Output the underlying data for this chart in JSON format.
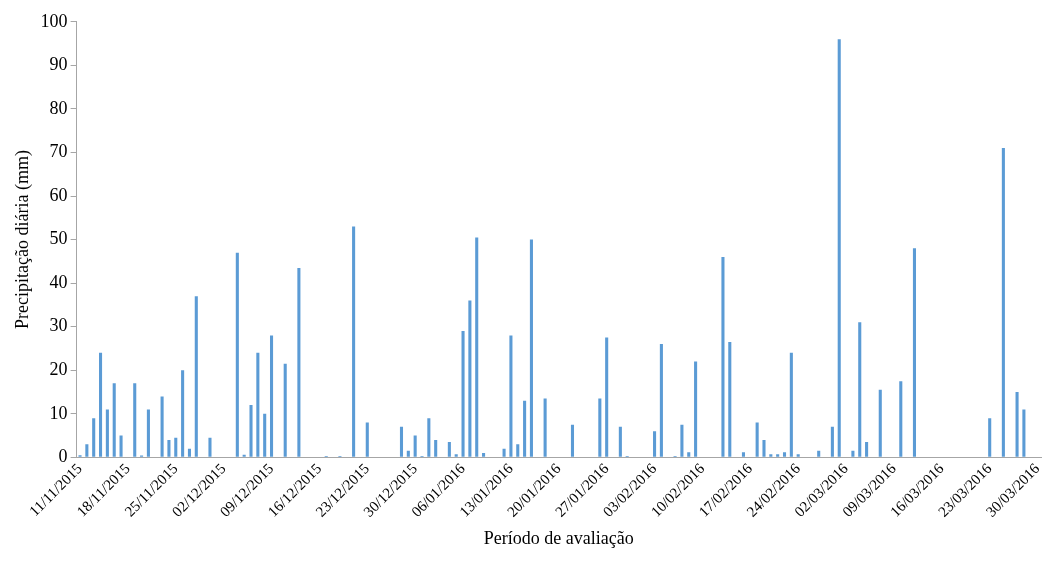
{
  "chart_data": {
    "type": "bar",
    "xlabel": "Período de avaliação",
    "ylabel": "Precipitação diária (mm)",
    "categories": [
      "11/11/2015",
      null,
      null,
      null,
      null,
      null,
      null,
      "18/11/2015",
      null,
      null,
      null,
      null,
      null,
      null,
      "25/11/2015",
      null,
      null,
      null,
      null,
      null,
      null,
      "02/12/2015",
      null,
      null,
      null,
      null,
      null,
      null,
      "09/12/2015",
      null,
      null,
      null,
      null,
      null,
      null,
      "16/12/2015",
      null,
      null,
      null,
      null,
      null,
      null,
      "23/12/2015",
      null,
      null,
      null,
      null,
      null,
      null,
      "30/12/2015",
      null,
      null,
      null,
      null,
      null,
      null,
      "06/01/2016",
      null,
      null,
      null,
      null,
      null,
      null,
      "13/01/2016",
      null,
      null,
      null,
      null,
      null,
      null,
      "20/01/2016",
      null,
      null,
      null,
      null,
      null,
      null,
      "27/01/2016",
      null,
      null,
      null,
      null,
      null,
      null,
      "03/02/2016",
      null,
      null,
      null,
      null,
      null,
      null,
      "10/02/2016",
      null,
      null,
      null,
      null,
      null,
      null,
      "17/02/2016",
      null,
      null,
      null,
      null,
      null,
      null,
      "24/02/2016",
      null,
      null,
      null,
      null,
      null,
      null,
      "02/03/2016",
      null,
      null,
      null,
      null,
      null,
      null,
      "09/03/2016",
      null,
      null,
      null,
      null,
      null,
      null,
      "16/03/2016",
      null,
      null,
      null,
      null,
      null,
      null,
      "23/03/2016",
      null,
      null,
      null,
      null,
      null,
      null,
      "30/03/2016"
    ],
    "values": [
      0.5,
      3,
      9,
      24,
      11,
      17,
      5,
      0,
      17,
      0.4,
      11,
      0,
      14,
      4,
      4.5,
      20,
      2,
      37,
      0,
      4.5,
      0,
      0,
      0,
      47,
      0.6,
      12,
      24,
      10,
      28,
      0,
      21.5,
      0,
      43.5,
      0,
      0,
      0,
      0.3,
      0,
      0.3,
      0,
      53,
      0,
      8,
      0,
      0,
      0,
      0,
      7,
      1.5,
      5,
      0.3,
      9,
      4,
      0,
      3.5,
      0.7,
      29,
      36,
      50.5,
      1,
      0,
      0,
      2,
      28,
      3,
      13,
      50,
      0,
      13.5,
      0,
      0,
      0,
      7.5,
      0,
      0,
      0,
      13.5,
      27.5,
      0,
      7,
      0.3,
      0,
      0,
      0,
      6,
      26,
      0,
      0.3,
      7.5,
      1.2,
      22,
      0,
      0,
      0,
      46,
      26.5,
      0,
      1.2,
      0,
      8,
      4,
      0.7,
      0.7,
      1.2,
      24,
      0.7,
      0,
      0,
      1.5,
      0,
      7,
      96,
      0,
      1.5,
      31,
      3.5,
      0,
      15.5,
      0,
      0,
      17.5,
      0,
      48,
      0,
      0,
      0,
      0,
      0,
      0,
      0,
      0,
      0,
      0,
      9,
      0,
      71,
      0,
      15,
      11,
      0,
      0
    ],
    "color": "#5b9bd5",
    "ylim": [
      0,
      100
    ],
    "yticks": [
      0,
      10,
      20,
      30,
      40,
      50,
      60,
      70,
      80,
      90,
      100
    ],
    "grid": false,
    "legend": false
  }
}
